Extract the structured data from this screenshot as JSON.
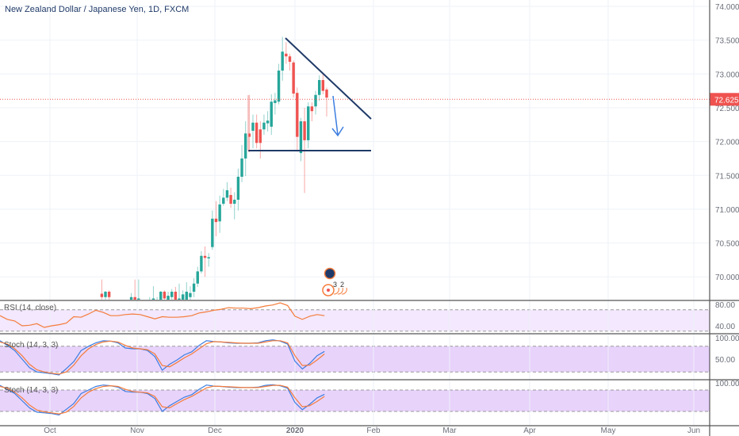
{
  "header": {
    "title": "New Zealand Dollar / Japanese Yen, 1D, FXCM"
  },
  "colors": {
    "up": "#26a69a",
    "down": "#ef5350",
    "rsi": "#f57c3b",
    "stoch_k": "#3d7ee0",
    "stoch_d": "#f57c3b",
    "trendline": "#1f3a68",
    "arrow": "#3d7ee0",
    "price_line": "#ef5350"
  },
  "price_axis": {
    "labels": [
      "74.000",
      "73.500",
      "73.000",
      "72.500",
      "72.000",
      "71.500",
      "71.000",
      "70.500",
      "70.000"
    ],
    "values": [
      74,
      73.5,
      73,
      72.5,
      72,
      71.5,
      71,
      70.5,
      70
    ],
    "current": "72.625",
    "current_value": 72.625
  },
  "time_axis": {
    "labels": [
      "Oct",
      "Nov",
      "Dec",
      "2020",
      "Feb",
      "Mar",
      "Apr",
      "May",
      "Jun"
    ]
  },
  "candles": [
    [
      69.75,
      69.96,
      69.6,
      69.7
    ],
    [
      69.7,
      69.79,
      69.6,
      69.78
    ],
    [
      69.78,
      69.8,
      69.6,
      69.7
    ],
    [
      69.6,
      69.64,
      69.5,
      69.55
    ],
    [
      69.55,
      69.6,
      69.45,
      69.5
    ],
    [
      69.5,
      69.58,
      69.4,
      69.45
    ],
    [
      69.45,
      69.55,
      69.4,
      69.5
    ],
    [
      69.5,
      69.6,
      69.45,
      69.55
    ],
    [
      69.6,
      69.76,
      69.55,
      69.7
    ],
    [
      69.7,
      69.96,
      69.6,
      69.62
    ],
    [
      69.6,
      69.96,
      69.55,
      69.68
    ],
    [
      69.6,
      69.64,
      69.5,
      69.55
    ],
    [
      69.55,
      69.62,
      69.5,
      69.6
    ],
    [
      69.6,
      69.7,
      69.55,
      69.62
    ],
    [
      69.65,
      69.86,
      69.6,
      69.68
    ],
    [
      69.6,
      69.7,
      69.55,
      69.66
    ],
    [
      69.62,
      69.79,
      69.55,
      69.78
    ],
    [
      69.78,
      69.8,
      69.6,
      69.68
    ],
    [
      69.62,
      69.78,
      69.55,
      69.72
    ],
    [
      69.7,
      69.82,
      69.6,
      69.78
    ],
    [
      69.78,
      69.85,
      69.62,
      69.66
    ],
    [
      69.66,
      69.9,
      69.6,
      69.68
    ],
    [
      69.62,
      69.8,
      69.55,
      69.74
    ],
    [
      69.6,
      69.92,
      69.55,
      69.78
    ],
    [
      69.7,
      69.86,
      69.6,
      69.76
    ],
    [
      69.78,
      69.98,
      69.7,
      69.9
    ],
    [
      69.9,
      70.15,
      69.85,
      70.08
    ],
    [
      70.08,
      70.38,
      70.05,
      70.31
    ],
    [
      70.31,
      70.45,
      70.0,
      70.28
    ],
    [
      70.28,
      70.35,
      70.15,
      70.29
    ],
    [
      70.44,
      70.98,
      70.4,
      70.86
    ],
    [
      70.86,
      71.12,
      70.6,
      70.81
    ],
    [
      70.82,
      71.2,
      70.65,
      71.07
    ],
    [
      71.08,
      71.3,
      71.05,
      71.17
    ],
    [
      71.17,
      71.4,
      71.12,
      71.28
    ],
    [
      71.21,
      71.32,
      71.02,
      71.08
    ],
    [
      71.08,
      71.25,
      70.85,
      71.14
    ],
    [
      71.14,
      71.6,
      70.98,
      71.48
    ],
    [
      71.48,
      71.95,
      71.4,
      71.75
    ],
    [
      71.75,
      72.3,
      71.49,
      72.12
    ],
    [
      72.12,
      72.69,
      71.84,
      72.07
    ],
    [
      72.16,
      72.4,
      71.9,
      72.28
    ],
    [
      72.28,
      72.4,
      71.9,
      71.98
    ],
    [
      72.18,
      72.3,
      71.75,
      71.98
    ],
    [
      72.18,
      72.4,
      72.1,
      72.28
    ],
    [
      72.27,
      72.45,
      72.15,
      72.31
    ],
    [
      72.22,
      72.7,
      72.1,
      72.59
    ],
    [
      72.57,
      72.72,
      72.4,
      72.61
    ],
    [
      72.59,
      73.15,
      72.55,
      73.05
    ],
    [
      73.05,
      73.55,
      72.9,
      73.33
    ],
    [
      73.3,
      73.47,
      73.15,
      73.26
    ],
    [
      73.26,
      73.3,
      73.05,
      73.18
    ],
    [
      73.17,
      73.2,
      72.65,
      72.71
    ],
    [
      72.72,
      72.8,
      71.85,
      72.07
    ],
    [
      71.83,
      72.35,
      71.71,
      72.3
    ],
    [
      72.3,
      72.5,
      71.24,
      72.02
    ],
    [
      72.02,
      72.58,
      71.9,
      72.52
    ],
    [
      72.52,
      72.58,
      72.3,
      72.45
    ],
    [
      72.52,
      72.75,
      72.4,
      72.69
    ],
    [
      72.69,
      72.98,
      72.6,
      72.91
    ],
    [
      72.91,
      73.01,
      72.7,
      72.75
    ],
    [
      72.77,
      72.8,
      72.37,
      72.65
    ]
  ],
  "drawings": {
    "label_count": "3",
    "label_count2": "2"
  },
  "rsi": {
    "label": "RSI (14, close)",
    "axis": [
      "80.00",
      "40.00"
    ],
    "axis_values": [
      80,
      40
    ],
    "values": [
      59,
      52,
      49,
      40,
      41,
      44,
      37,
      40,
      42,
      45,
      57,
      56,
      62,
      69,
      65,
      59,
      59,
      61,
      62,
      61,
      57,
      53,
      57,
      56,
      56,
      57,
      59,
      64,
      66,
      69,
      71,
      74,
      73,
      73,
      72,
      74,
      77,
      79,
      83,
      78,
      58,
      52,
      58,
      61,
      59
    ]
  },
  "stoch1": {
    "label": "Stoch (14, 3, 3)",
    "axis": [
      "100.00",
      "50.00"
    ],
    "axis_values": [
      100,
      50
    ],
    "k": [
      93,
      82,
      70,
      50,
      30,
      20,
      18,
      16,
      13,
      28,
      44,
      70,
      80,
      88,
      93,
      92,
      88,
      76,
      74,
      74,
      70,
      56,
      24,
      38,
      48,
      60,
      67,
      82,
      93,
      91,
      90,
      88,
      87,
      87,
      87,
      88,
      93,
      95,
      92,
      85,
      45,
      27,
      40,
      58,
      68
    ],
    "d": [
      90,
      85,
      74,
      58,
      38,
      25,
      20,
      17,
      15,
      20,
      36,
      58,
      74,
      84,
      90,
      92,
      90,
      82,
      76,
      74,
      72,
      62,
      35,
      32,
      42,
      53,
      62,
      74,
      86,
      91,
      90,
      89,
      88,
      87,
      87,
      87,
      90,
      93,
      93,
      88,
      58,
      35,
      36,
      48,
      62
    ]
  },
  "stoch2": {
    "label": "Stoch (14, 3, 3)",
    "axis": [
      "100.00"
    ],
    "axis_values": [
      100
    ],
    "k": [
      93,
      82,
      70,
      50,
      30,
      18,
      16,
      14,
      10,
      26,
      42,
      70,
      80,
      90,
      94,
      92,
      88,
      76,
      74,
      74,
      70,
      56,
      20,
      36,
      48,
      60,
      67,
      82,
      94,
      91,
      90,
      88,
      87,
      87,
      87,
      88,
      93,
      95,
      92,
      85,
      45,
      25,
      40,
      58,
      68
    ],
    "d": [
      90,
      85,
      74,
      58,
      38,
      24,
      19,
      16,
      13,
      18,
      34,
      58,
      74,
      84,
      90,
      92,
      90,
      82,
      76,
      74,
      72,
      62,
      33,
      30,
      42,
      53,
      62,
      74,
      86,
      91,
      90,
      89,
      88,
      87,
      87,
      87,
      90,
      93,
      93,
      88,
      58,
      33,
      36,
      48,
      62
    ]
  }
}
